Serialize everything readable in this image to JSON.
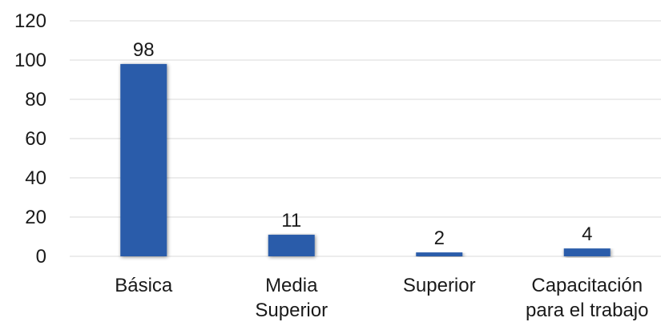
{
  "chart_data": {
    "type": "bar",
    "title": "",
    "xlabel": "",
    "ylabel": "",
    "categories": [
      [
        "Básica"
      ],
      [
        "Media",
        "Superior"
      ],
      [
        "Superior"
      ],
      [
        "Capacitación",
        "para el trabajo"
      ]
    ],
    "values": [
      98,
      11,
      2,
      4
    ],
    "data_labels": [
      "98",
      "11",
      "2",
      "4"
    ],
    "ylim": [
      0,
      120
    ],
    "yticks": [
      0,
      20,
      40,
      60,
      80,
      100,
      120
    ],
    "grid": true,
    "legend": "none",
    "colors": {
      "bar": "#2a5caa",
      "bar_shadow": "#b0b0b0",
      "grid": "#d9d9d9",
      "text": "#1a1a1a"
    }
  }
}
